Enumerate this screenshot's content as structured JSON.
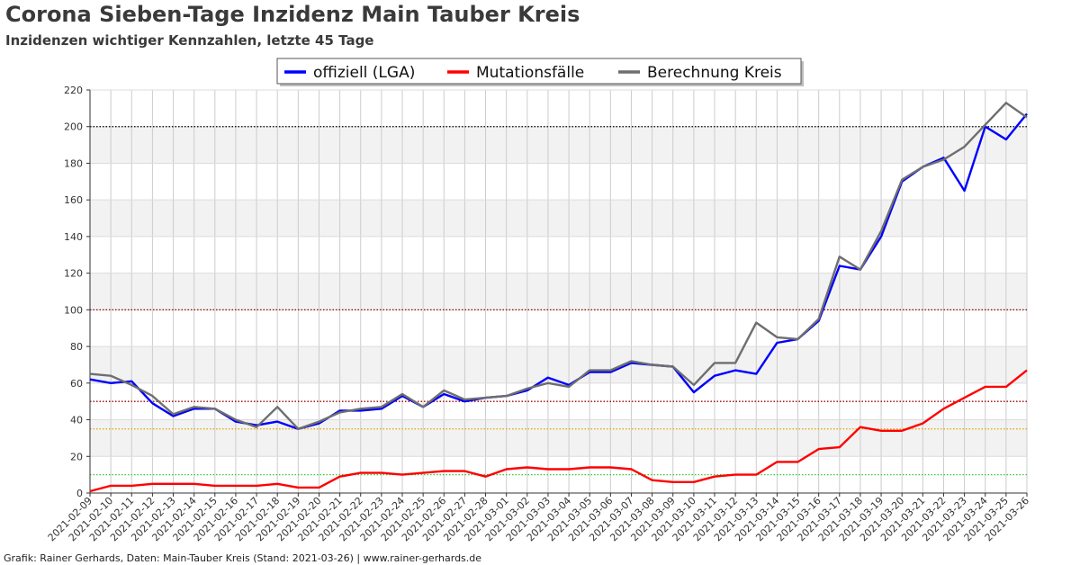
{
  "header": {
    "title": "Corona Sieben-Tage Inzidenz Main Tauber Kreis",
    "subtitle": "Inzidenzen wichtiger Kennzahlen, letzte 45 Tage"
  },
  "footer": {
    "text": "Grafik: Rainer Gerhards, Daten: Main-Tauber Kreis (Stand: 2021-03-26) | www.rainer-gerhards.de"
  },
  "colors": {
    "official": "#0000ff",
    "mutation": "#ff0000",
    "district": "#6e6e6e",
    "band": "#f2f2f2",
    "grid": "#cccccc"
  },
  "chart_data": {
    "type": "line",
    "title": "Corona Sieben-Tage Inzidenz Main Tauber Kreis",
    "subtitle": "Inzidenzen wichtiger Kennzahlen, letzte 45 Tage",
    "xlabel": "",
    "ylabel": "",
    "ylim": [
      0,
      220
    ],
    "yticks": [
      0,
      20,
      40,
      60,
      80,
      100,
      120,
      140,
      160,
      180,
      200,
      220
    ],
    "grid": true,
    "legend_position": "top-center",
    "x": [
      "2021-02-09",
      "2021-02-10",
      "2021-02-11",
      "2021-02-12",
      "2021-02-13",
      "2021-02-14",
      "2021-02-15",
      "2021-02-16",
      "2021-02-17",
      "2021-02-18",
      "2021-02-19",
      "2021-02-20",
      "2021-02-21",
      "2021-02-22",
      "2021-02-23",
      "2021-02-24",
      "2021-02-25",
      "2021-02-26",
      "2021-02-27",
      "2021-02-28",
      "2021-03-01",
      "2021-03-02",
      "2021-03-03",
      "2021-03-04",
      "2021-03-05",
      "2021-03-06",
      "2021-03-07",
      "2021-03-08",
      "2021-03-09",
      "2021-03-10",
      "2021-03-11",
      "2021-03-12",
      "2021-03-13",
      "2021-03-14",
      "2021-03-15",
      "2021-03-16",
      "2021-03-17",
      "2021-03-18",
      "2021-03-19",
      "2021-03-20",
      "2021-03-21",
      "2021-03-22",
      "2021-03-23",
      "2021-03-24",
      "2021-03-25",
      "2021-03-26"
    ],
    "series": [
      {
        "name": "offiziell (LGA)",
        "color": "#0000ff",
        "values": [
          62,
          60,
          61,
          49,
          42,
          46,
          46,
          39,
          37,
          39,
          35,
          38,
          45,
          45,
          46,
          53,
          47,
          54,
          50,
          52,
          53,
          56,
          63,
          59,
          66,
          66,
          71,
          70,
          69,
          55,
          64,
          67,
          65,
          82,
          84,
          94,
          124,
          122,
          140,
          170,
          178,
          183,
          165,
          200,
          193,
          207
        ]
      },
      {
        "name": "Mutationsfälle",
        "color": "#ff0000",
        "values": [
          1,
          4,
          4,
          5,
          5,
          5,
          4,
          4,
          4,
          5,
          3,
          3,
          9,
          11,
          11,
          10,
          11,
          12,
          12,
          9,
          13,
          14,
          13,
          13,
          14,
          14,
          13,
          7,
          6,
          6,
          9,
          10,
          10,
          17,
          17,
          24,
          25,
          36,
          34,
          34,
          38,
          46,
          52,
          58,
          58,
          67
        ]
      },
      {
        "name": "Berechnung Kreis",
        "color": "#6e6e6e",
        "values": [
          65,
          64,
          59,
          53,
          43,
          47,
          46,
          40,
          36,
          47,
          35,
          39,
          44,
          46,
          47,
          54,
          47,
          56,
          51,
          52,
          53,
          57,
          60,
          58,
          67,
          67,
          72,
          70,
          69,
          59,
          71,
          71,
          93,
          85,
          84,
          95,
          129,
          122,
          143,
          171,
          178,
          182,
          189,
          201,
          213,
          205
        ]
      }
    ],
    "reference_lines": [
      {
        "value": 200,
        "color": "#000000"
      },
      {
        "value": 100,
        "color": "#990000"
      },
      {
        "value": 50,
        "color": "#990000"
      },
      {
        "value": 35,
        "color": "#e6a000"
      },
      {
        "value": 10,
        "color": "#33cc33"
      }
    ]
  }
}
